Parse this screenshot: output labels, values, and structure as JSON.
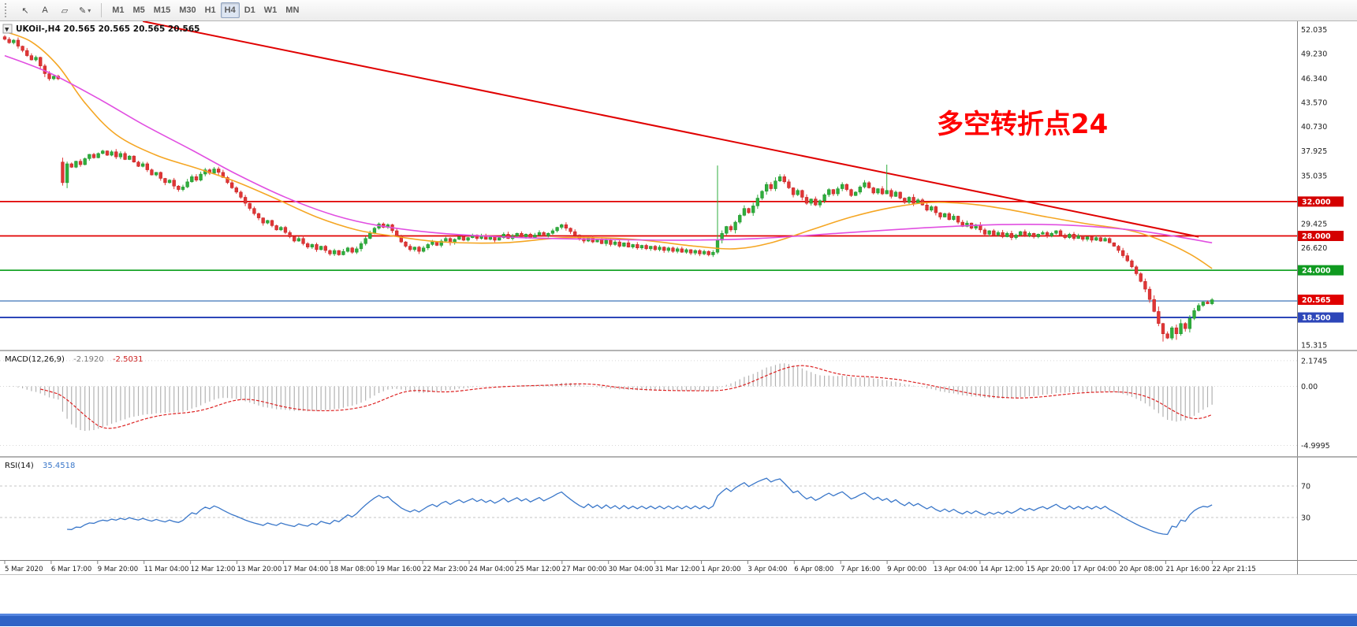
{
  "toolbar": {
    "tools": [
      {
        "name": "cursor",
        "glyph": "↖"
      },
      {
        "name": "text-label",
        "glyph": "A"
      },
      {
        "name": "shapes",
        "glyph": "▱"
      },
      {
        "name": "draw-tools",
        "glyph": "✎",
        "arrow": "▾"
      }
    ],
    "timeframes": [
      "M1",
      "M5",
      "M15",
      "M30",
      "H1",
      "H4",
      "D1",
      "W1",
      "MN"
    ],
    "active_timeframe": "H4"
  },
  "titles": {
    "collapse_arrow": "▼",
    "main_header": "UKOil-,H4 20.565 20.565 20.565 20.565",
    "macd_header": "MACD(12,26,9)",
    "macd_value": "-2.1920",
    "macd_signal_value": "-2.5031",
    "rsi_header": "RSI(14)",
    "rsi_value": "35.4518"
  },
  "annotation": {
    "text": "多空转折点24",
    "color": "#ff0000"
  },
  "chart_data": {
    "type": "candlestick",
    "symbol": "UKOil-",
    "timeframe": "H4",
    "current_price": "20.565",
    "candle_colors": {
      "up": "#2fae3d",
      "down": "#e03636",
      "up_edge": "#1f8f2a",
      "down_edge": "#c02020"
    },
    "first_open": 51.2,
    "seed": 11,
    "closes": [
      50.9,
      50.5,
      50.8,
      50.1,
      49.6,
      49.0,
      48.5,
      48.8,
      47.8,
      46.9,
      46.3,
      46.6,
      46.3,
      34.2,
      36.4,
      36.0,
      36.7,
      36.3,
      37.0,
      37.5,
      37.1,
      37.6,
      37.9,
      37.4,
      37.8,
      37.2,
      37.6,
      36.9,
      37.3,
      36.6,
      36.1,
      36.4,
      35.7,
      35.1,
      35.4,
      34.7,
      34.2,
      34.5,
      33.8,
      33.4,
      33.7,
      34.3,
      34.9,
      34.5,
      35.2,
      35.7,
      35.3,
      35.8,
      35.4,
      34.8,
      34.2,
      33.6,
      33.1,
      32.5,
      31.8,
      31.2,
      30.6,
      30.1,
      29.5,
      29.8,
      29.2,
      28.7,
      29.0,
      28.4,
      27.9,
      27.4,
      27.7,
      27.1,
      26.7,
      27.0,
      26.4,
      26.8,
      26.3,
      25.9,
      26.3,
      25.8,
      26.2,
      26.6,
      26.1,
      26.5,
      27.1,
      27.7,
      28.3,
      28.9,
      29.4,
      29.0,
      29.3,
      28.6,
      28.0,
      27.3,
      26.8,
      26.4,
      26.7,
      26.2,
      26.6,
      27.0,
      27.3,
      26.9,
      27.4,
      27.7,
      27.2,
      27.6,
      27.9,
      27.5,
      27.8,
      28.1,
      27.7,
      28.0,
      27.6,
      27.9,
      27.5,
      27.8,
      28.2,
      27.7,
      28.0,
      28.3,
      27.9,
      28.2,
      27.8,
      28.1,
      28.4,
      28.0,
      28.3,
      28.6,
      29.0,
      29.3,
      28.9,
      28.5,
      28.1,
      27.7,
      27.4,
      27.8,
      27.3,
      27.6,
      27.1,
      27.5,
      27.0,
      27.3,
      26.8,
      27.2,
      26.7,
      27.0,
      26.6,
      26.9,
      26.5,
      26.8,
      26.4,
      26.7,
      26.3,
      26.6,
      26.2,
      26.5,
      26.1,
      26.4,
      26.0,
      26.3,
      25.9,
      26.2,
      25.8,
      26.1,
      27.5,
      28.3,
      29.1,
      28.7,
      29.6,
      30.4,
      31.2,
      30.7,
      31.5,
      32.4,
      33.2,
      34.0,
      33.5,
      34.4,
      34.9,
      34.3,
      33.6,
      32.8,
      33.3,
      32.5,
      31.8,
      32.3,
      31.6,
      32.1,
      32.8,
      33.4,
      32.9,
      33.5,
      34.0,
      33.4,
      32.7,
      33.1,
      33.7,
      34.2,
      33.6,
      33.0,
      33.5,
      32.9,
      33.3,
      32.6,
      33.1,
      32.4,
      31.9,
      32.5,
      31.8,
      32.2,
      31.6,
      31.0,
      31.4,
      30.7,
      30.2,
      30.6,
      29.9,
      30.3,
      29.6,
      29.1,
      29.5,
      28.9,
      29.3,
      28.7,
      28.2,
      28.6,
      28.1,
      28.4,
      27.9,
      28.3,
      27.8,
      28.1,
      28.5,
      28.0,
      28.3,
      27.9,
      28.2,
      28.4,
      28.0,
      28.3,
      28.6,
      28.1,
      27.8,
      28.2,
      27.7,
      28.0,
      27.6,
      27.9,
      27.5,
      27.8,
      27.4,
      27.7,
      27.2,
      26.8,
      26.3,
      25.7,
      25.1,
      24.4,
      23.6,
      22.7,
      21.8,
      20.6,
      19.2,
      17.8,
      16.6,
      16.1,
      17.3,
      16.6,
      17.8,
      17.2,
      18.4,
      19.3,
      19.9,
      20.3,
      20.1,
      20.565
    ],
    "overrides": {
      "13": {
        "o": 36.6
      },
      "160": {
        "h": 36.2
      },
      "198": {
        "h": 36.3
      },
      "260": {
        "l": 15.7
      },
      "263": {
        "l": 15.9
      }
    },
    "moving_averages": [
      {
        "name": "fast-ma",
        "color": "#f5a623",
        "anchors": [
          [
            0,
            51.8
          ],
          [
            6,
            50.6
          ],
          [
            12,
            47.8
          ],
          [
            18,
            43.5
          ],
          [
            25,
            39.8
          ],
          [
            34,
            37.4
          ],
          [
            43,
            35.9
          ],
          [
            52,
            34.3
          ],
          [
            61,
            32.3
          ],
          [
            70,
            30.2
          ],
          [
            79,
            28.7
          ],
          [
            87,
            28.0
          ],
          [
            98,
            27.3
          ],
          [
            112,
            27.2
          ],
          [
            126,
            27.8
          ],
          [
            141,
            27.6
          ],
          [
            155,
            26.8
          ],
          [
            164,
            26.5
          ],
          [
            172,
            27.2
          ],
          [
            181,
            28.7
          ],
          [
            190,
            30.2
          ],
          [
            199,
            31.3
          ],
          [
            208,
            31.9
          ],
          [
            217,
            31.7
          ],
          [
            225,
            31.1
          ],
          [
            234,
            30.2
          ],
          [
            243,
            29.4
          ],
          [
            252,
            28.7
          ],
          [
            259,
            27.6
          ],
          [
            266,
            25.9
          ],
          [
            271,
            24.2
          ]
        ]
      },
      {
        "name": "slow-ma",
        "color": "#e14fe1",
        "anchors": [
          [
            0,
            49.0
          ],
          [
            10,
            47.0
          ],
          [
            21,
            44.0
          ],
          [
            31,
            41.0
          ],
          [
            42,
            38.0
          ],
          [
            52,
            35.2
          ],
          [
            63,
            32.5
          ],
          [
            74,
            30.4
          ],
          [
            84,
            29.2
          ],
          [
            98,
            28.3
          ],
          [
            116,
            27.8
          ],
          [
            134,
            27.6
          ],
          [
            152,
            27.5
          ],
          [
            169,
            27.7
          ],
          [
            187,
            28.3
          ],
          [
            205,
            28.9
          ],
          [
            222,
            29.3
          ],
          [
            236,
            29.3
          ],
          [
            251,
            28.8
          ],
          [
            261,
            28.1
          ],
          [
            271,
            27.2
          ]
        ]
      }
    ],
    "trendline": {
      "from": [
        31,
        53.0
      ],
      "to": [
        268,
        27.9
      ],
      "color": "#e00000",
      "width": 2
    },
    "hlines": [
      {
        "price": 32.0,
        "color": "#e00000",
        "width": 1.7
      },
      {
        "price": 28.0,
        "color": "#e00000",
        "width": 1.7
      },
      {
        "price": 24.0,
        "color": "#18a428",
        "width": 1.7
      },
      {
        "price": 20.43,
        "color": "#4f81bd",
        "width": 1.4
      },
      {
        "price": 18.5,
        "color": "#2d46b9",
        "width": 2
      }
    ],
    "price_axis": {
      "labels": [
        {
          "t": "52.035",
          "p": 52.035
        },
        {
          "t": "49.230",
          "p": 49.23
        },
        {
          "t": "46.340",
          "p": 46.34
        },
        {
          "t": "43.570",
          "p": 43.57
        },
        {
          "t": "40.730",
          "p": 40.73
        },
        {
          "t": "37.925",
          "p": 37.925
        },
        {
          "t": "35.035",
          "p": 35.035
        },
        {
          "t": "29.425",
          "p": 29.425
        },
        {
          "t": "26.620",
          "p": 26.62
        },
        {
          "t": "15.315",
          "p": 15.315
        }
      ],
      "boxes": [
        {
          "t": "32.000",
          "p": 32.0,
          "bg": "#d40000"
        },
        {
          "t": "28.000",
          "p": 28.0,
          "bg": "#d40000"
        },
        {
          "t": "24.000",
          "p": 24.0,
          "bg": "#0f9a20"
        },
        {
          "t": "20.565",
          "p": 20.565,
          "bg": "#e00000"
        },
        {
          "t": "18.500",
          "p": 18.5,
          "bg": "#2d46b9"
        }
      ]
    },
    "indicators": {
      "macd": {
        "histogram_color": "#b2b2b2",
        "signal_color": "#dd2222",
        "axis_labels": [
          {
            "t": "2.1745",
            "v": 2.1745
          },
          {
            "t": "0.00",
            "v": 0
          },
          {
            "t": "-4.9995",
            "v": -4.9995
          }
        ]
      },
      "rsi": {
        "line_color": "#3a77c9",
        "levels": [
          {
            "t": "70",
            "v": 70
          },
          {
            "t": "30",
            "v": 30
          }
        ]
      }
    },
    "time_labels": [
      "5 Mar 2020",
      "6 Mar 17:00",
      "9 Mar 20:00",
      "11 Mar 04:00",
      "12 Mar 12:00",
      "13 Mar 20:00",
      "17 Mar 04:00",
      "18 Mar 08:00",
      "19 Mar 16:00",
      "22 Mar 23:00",
      "24 Mar 04:00",
      "25 Mar 12:00",
      "27 Mar 00:00",
      "30 Mar 04:00",
      "31 Mar 12:00",
      "1 Apr 20:00",
      "3 Apr 04:00",
      "6 Apr 08:00",
      "7 Apr 16:00",
      "9 Apr 00:00",
      "13 Apr 04:00",
      "14 Apr 12:00",
      "15 Apr 20:00",
      "17 Apr 04:00",
      "20 Apr 08:00",
      "21 Apr 16:00",
      "22 Apr 21:15"
    ]
  }
}
